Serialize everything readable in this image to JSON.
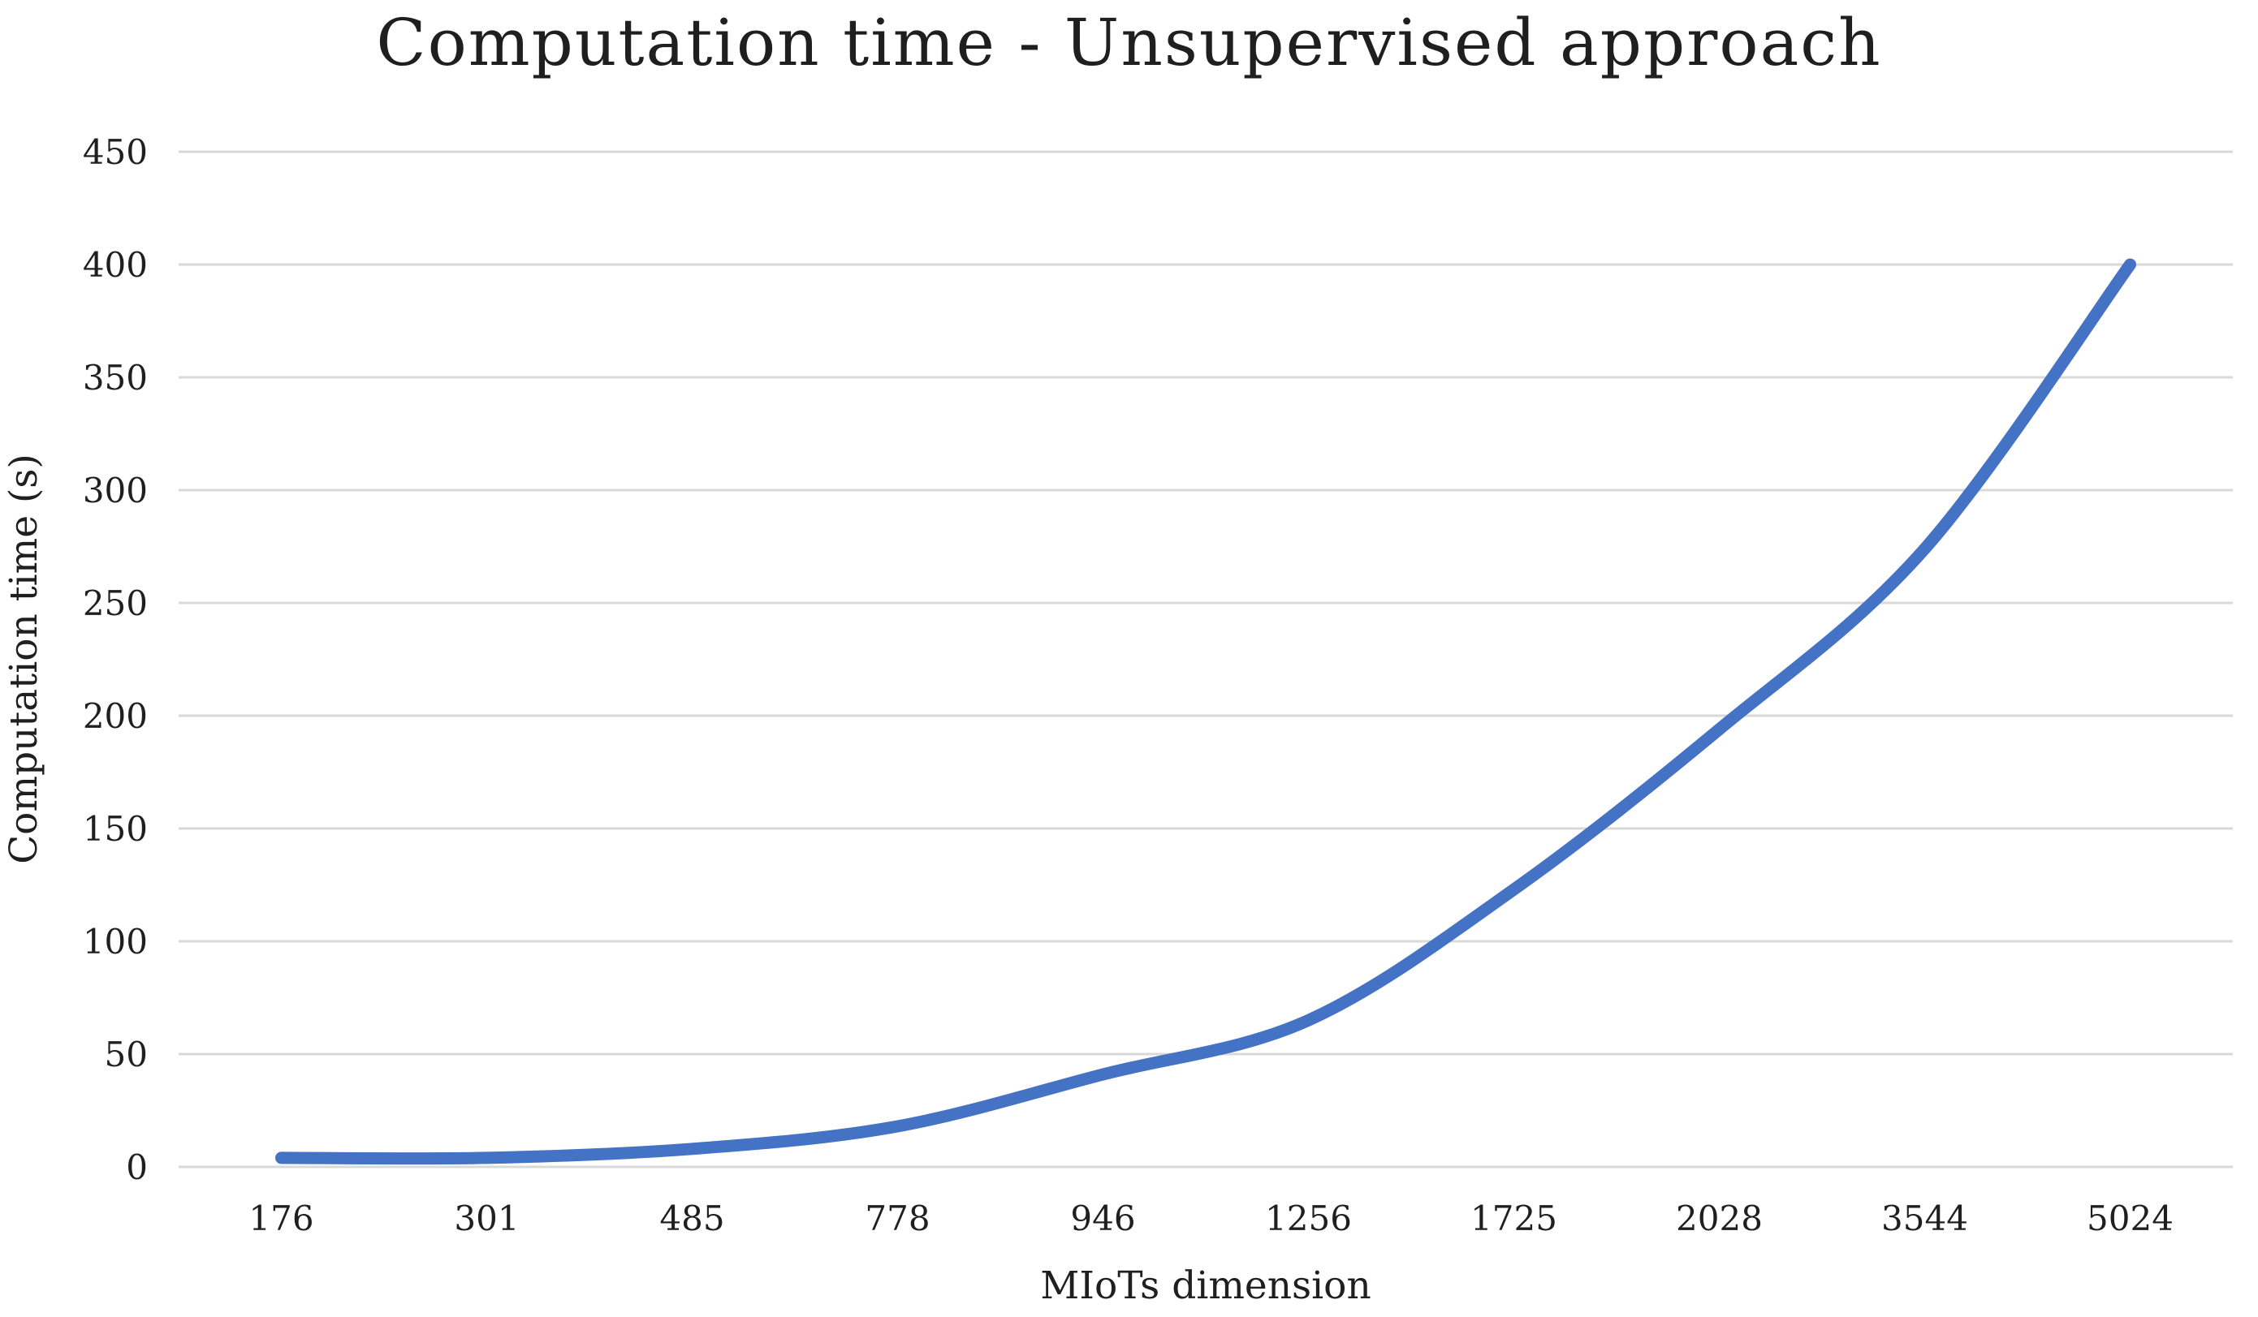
{
  "chart_data": {
    "type": "line",
    "title": "Computation time - Unsupervised approach",
    "xlabel": "MIoTs dimension",
    "ylabel": "Computation time (s)",
    "categories": [
      "176",
      "301",
      "485",
      "778",
      "946",
      "1256",
      "1725",
      "2028",
      "3544",
      "5024"
    ],
    "series": [
      {
        "values": [
          4,
          4,
          8,
          18,
          41,
          65,
          123,
          194,
          274,
          400
        ]
      }
    ],
    "ylim": [
      0,
      450
    ],
    "ytick_labels": [
      "0",
      "50",
      "100",
      "150",
      "200",
      "250",
      "300",
      "350",
      "400",
      "450"
    ],
    "grid": "horizontal-only",
    "legend": "none",
    "markers": "none",
    "smoothed": true,
    "line_color": "#4472C4",
    "line_width": 15,
    "gridline_color": "#D9D9D9",
    "text_color": "#1F1F1F",
    "background": "#FFFFFF"
  }
}
